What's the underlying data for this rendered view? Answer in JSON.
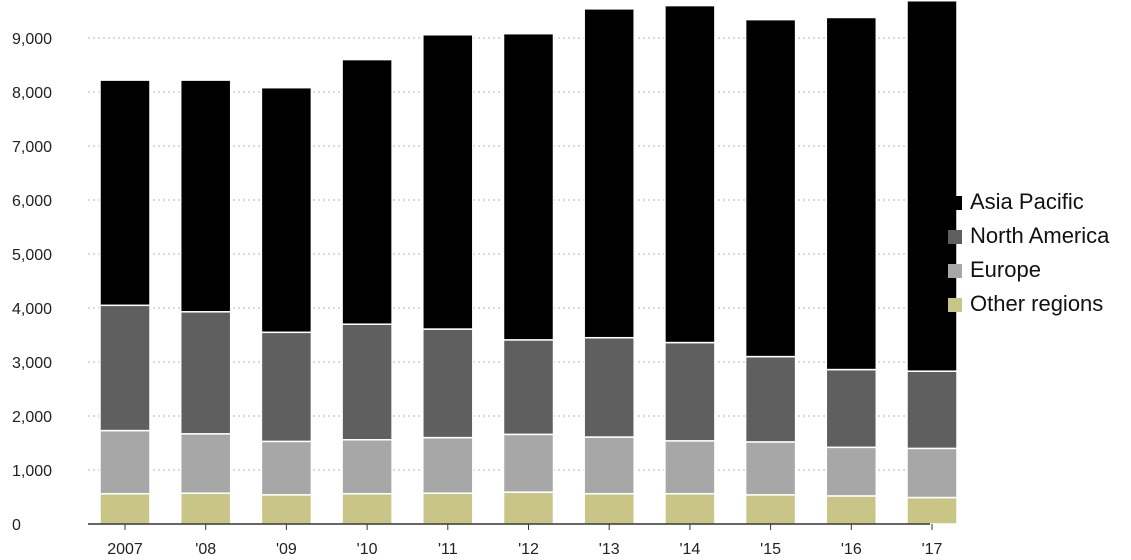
{
  "chart_data": {
    "type": "bar",
    "stacked": true,
    "categories": [
      "2007",
      "'08",
      "'09",
      "'10",
      "'11",
      "'12",
      "'13",
      "'14",
      "'15",
      "'16",
      "'17"
    ],
    "series": [
      {
        "name": "Other regions",
        "color": "#c9c587",
        "values": [
          560,
          570,
          540,
          560,
          570,
          590,
          560,
          560,
          540,
          520,
          490
        ]
      },
      {
        "name": "Europe",
        "color": "#a7a7a7",
        "values": [
          1170,
          1100,
          990,
          1000,
          1030,
          1070,
          1050,
          980,
          980,
          900,
          910
        ]
      },
      {
        "name": "North America",
        "color": "#5f5f5f",
        "values": [
          2320,
          2260,
          2020,
          2140,
          2010,
          1750,
          1840,
          1820,
          1580,
          1440,
          1430
        ]
      },
      {
        "name": "Asia Pacific",
        "color": "#000000",
        "values": [
          4170,
          4290,
          4530,
          4900,
          5450,
          5670,
          6090,
          6240,
          6240,
          6520,
          6860
        ]
      }
    ],
    "ylim": [
      0,
      9500
    ],
    "yticks": [
      0,
      1000,
      2000,
      3000,
      4000,
      5000,
      6000,
      7000,
      8000,
      9000
    ],
    "ytick_labels": [
      "0",
      "1,000",
      "2,000",
      "3,000",
      "4,000",
      "5,000",
      "6,000",
      "7,000",
      "8,000",
      "9,000"
    ],
    "grid": "horizontal dotted",
    "legend_position": "right",
    "legend_order": [
      "Asia Pacific",
      "North America",
      "Europe",
      "Other regions"
    ],
    "title": "",
    "xlabel": "",
    "ylabel": ""
  }
}
